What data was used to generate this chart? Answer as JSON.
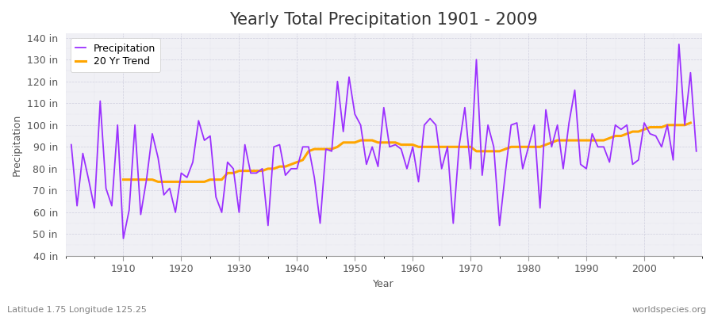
{
  "title": "Yearly Total Precipitation 1901 - 2009",
  "xlabel": "Year",
  "ylabel": "Precipitation",
  "subtitle": "Latitude 1.75 Longitude 125.25",
  "watermark": "worldspecies.org",
  "years": [
    1901,
    1902,
    1903,
    1904,
    1905,
    1906,
    1907,
    1908,
    1909,
    1910,
    1911,
    1912,
    1913,
    1914,
    1915,
    1916,
    1917,
    1918,
    1919,
    1920,
    1921,
    1922,
    1923,
    1924,
    1925,
    1926,
    1927,
    1928,
    1929,
    1930,
    1931,
    1932,
    1933,
    1934,
    1935,
    1936,
    1937,
    1938,
    1939,
    1940,
    1941,
    1942,
    1943,
    1944,
    1945,
    1946,
    1947,
    1948,
    1949,
    1950,
    1951,
    1952,
    1953,
    1954,
    1955,
    1956,
    1957,
    1958,
    1959,
    1960,
    1961,
    1962,
    1963,
    1964,
    1965,
    1966,
    1967,
    1968,
    1969,
    1970,
    1971,
    1972,
    1973,
    1974,
    1975,
    1976,
    1977,
    1978,
    1979,
    1980,
    1981,
    1982,
    1983,
    1984,
    1985,
    1986,
    1987,
    1988,
    1989,
    1990,
    1991,
    1992,
    1993,
    1994,
    1995,
    1996,
    1997,
    1998,
    1999,
    2000,
    2001,
    2002,
    2003,
    2004,
    2005,
    2006,
    2007,
    2008,
    2009
  ],
  "precipitation": [
    91,
    63,
    87,
    75,
    62,
    111,
    71,
    63,
    100,
    48,
    61,
    100,
    59,
    75,
    96,
    85,
    68,
    71,
    60,
    78,
    76,
    83,
    102,
    93,
    95,
    67,
    60,
    83,
    80,
    60,
    91,
    78,
    78,
    80,
    54,
    90,
    91,
    77,
    80,
    80,
    90,
    90,
    76,
    55,
    89,
    88,
    120,
    97,
    122,
    105,
    100,
    82,
    90,
    81,
    108,
    90,
    91,
    89,
    80,
    90,
    74,
    100,
    103,
    100,
    80,
    90,
    55,
    90,
    108,
    80,
    130,
    77,
    100,
    90,
    54,
    78,
    100,
    101,
    80,
    90,
    100,
    62,
    107,
    90,
    100,
    80,
    101,
    116,
    82,
    80,
    96,
    90,
    90,
    83,
    100,
    98,
    100,
    82,
    84,
    101,
    96,
    95,
    90,
    100,
    84,
    137,
    100,
    124,
    88
  ],
  "trend": [
    null,
    null,
    null,
    null,
    null,
    null,
    null,
    null,
    null,
    75,
    75,
    75,
    75,
    75,
    75,
    74,
    74,
    74,
    74,
    74,
    74,
    74,
    74,
    74,
    75,
    75,
    75,
    78,
    78,
    79,
    79,
    79,
    79,
    79,
    80,
    80,
    81,
    81,
    82,
    83,
    84,
    88,
    89,
    89,
    89,
    89,
    90,
    92,
    92,
    92,
    93,
    93,
    93,
    92,
    92,
    92,
    92,
    91,
    91,
    91,
    90,
    90,
    90,
    90,
    90,
    90,
    90,
    90,
    90,
    90,
    88,
    88,
    88,
    88,
    88,
    89,
    90,
    90,
    90,
    90,
    90,
    90,
    91,
    92,
    93,
    93,
    93,
    93,
    93,
    93,
    93,
    93,
    93,
    94,
    95,
    95,
    96,
    97,
    97,
    98,
    99,
    99,
    99,
    100,
    100,
    100,
    100,
    101,
    null
  ],
  "precip_color": "#9B30FF",
  "trend_color": "#FFA500",
  "fig_bg_color": "#FFFFFF",
  "plot_bg_color": "#F0F0F5",
  "grid_color": "#CCCCDD",
  "ylim": [
    40,
    142
  ],
  "yticks": [
    40,
    50,
    60,
    70,
    80,
    90,
    100,
    110,
    120,
    130,
    140
  ],
  "title_fontsize": 15,
  "label_fontsize": 9,
  "tick_fontsize": 9,
  "subtitle_color": "#808080",
  "watermark_color": "#808080"
}
